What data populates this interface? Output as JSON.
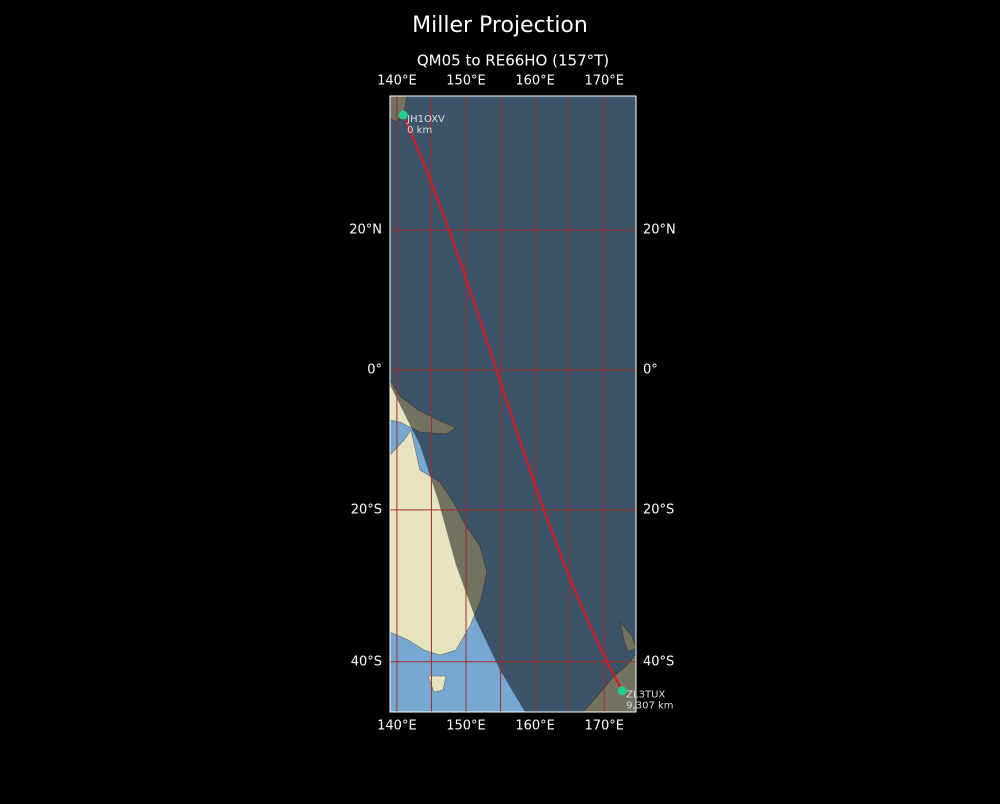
{
  "title": "Miller Projection",
  "map": {
    "subtitle": "QM05 to RE66HO (157°T)",
    "projection": "miller",
    "lon_range": [
      139,
      174.6
    ],
    "lat_range": [
      37.8,
      -46
    ],
    "lon_ticks": [
      {
        "value": 140,
        "label": "140°E"
      },
      {
        "value": 150,
        "label": "150°E"
      },
      {
        "value": 160,
        "label": "160°E"
      },
      {
        "value": 170,
        "label": "170°E"
      }
    ],
    "lat_ticks": [
      {
        "value": 20,
        "label": "20°N"
      },
      {
        "value": 0,
        "label": "0°"
      },
      {
        "value": -20,
        "label": "20°S"
      },
      {
        "value": -40,
        "label": "40°S"
      }
    ],
    "lon_gridlines": [
      140,
      145,
      150,
      155,
      160,
      165,
      170
    ],
    "grid_color": "#a52a2a",
    "path_color": "#e8141e",
    "station_color": "#1fd08f",
    "stations": [
      {
        "name": "JH1OXV",
        "distance": "0 km",
        "lon": 140.9,
        "lat": 35.4
      },
      {
        "name": "ZL3TUX",
        "distance": "9,307 km",
        "lon": 172.6,
        "lat": -43.5
      }
    ]
  }
}
